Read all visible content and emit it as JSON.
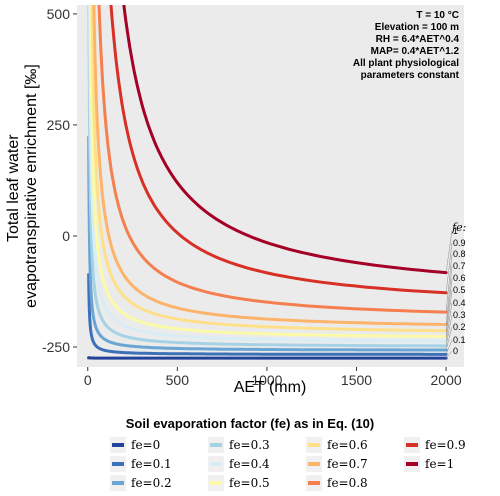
{
  "chart_data": {
    "type": "line",
    "title": "",
    "xlabel": "AET (mm)",
    "ylabel_lines": [
      "Total leaf water",
      "evapotranspirative enrichment [‰]"
    ],
    "xlim": [
      -60,
      2100
    ],
    "ylim": [
      -295,
      520
    ],
    "xticks": [
      0,
      500,
      1000,
      1500,
      2000
    ],
    "yticks": [
      -250,
      0,
      250,
      500
    ],
    "ytick_labels": [
      "-250",
      "0",
      "250",
      "500"
    ],
    "grid": false,
    "panel_background": "#ebebeb",
    "annotation": [
      "T = 10 °C",
      "Elevation = 100 m",
      "RH = 6.4*AET^0.4",
      "MAP= 0.4*AET^1.2",
      "All plant physiological",
      "parameters constant"
    ],
    "end_labels_header": "fe:",
    "legend_title": "Soil evaporation factor (fe) as in Eq. (10)",
    "legend_position": "bottom",
    "series": [
      {
        "name": "fe=0",
        "label": "0",
        "color": "#23439b",
        "asym": -275,
        "k": 5
      },
      {
        "name": "fe=0.1",
        "label": "0.1",
        "color": "#3c70b8",
        "asym": -267,
        "k": 900
      },
      {
        "name": "fe=0.2",
        "label": "0.2",
        "color": "#6aa5d3",
        "asym": -258,
        "k": 2400
      },
      {
        "name": "fe=0.3",
        "label": "0.3",
        "color": "#a6d2e6",
        "asym": -250,
        "k": 5000
      },
      {
        "name": "fe=0.4",
        "label": "0.4",
        "color": "#d8edf5",
        "asym": -241,
        "k": 8000
      },
      {
        "name": "fe=0.5",
        "label": "0.5",
        "color": "#fafaa8",
        "asym": -232,
        "k": 11500
      },
      {
        "name": "fe=0.6",
        "label": "0.6",
        "color": "#fee08b",
        "asym": -222,
        "k": 17500
      },
      {
        "name": "fe=0.7",
        "label": "0.7",
        "color": "#fdb46a",
        "asym": -212,
        "k": 25000
      },
      {
        "name": "fe=0.8",
        "label": "0.8",
        "color": "#f57f4e",
        "asym": -194,
        "k": 45000
      },
      {
        "name": "fe=0.9",
        "label": "0.9",
        "color": "#d73027",
        "asym": -173,
        "k": 90000
      },
      {
        "name": "fe=1",
        "label": "1",
        "color": "#a50026",
        "asym": -150,
        "k": 135000
      }
    ]
  }
}
